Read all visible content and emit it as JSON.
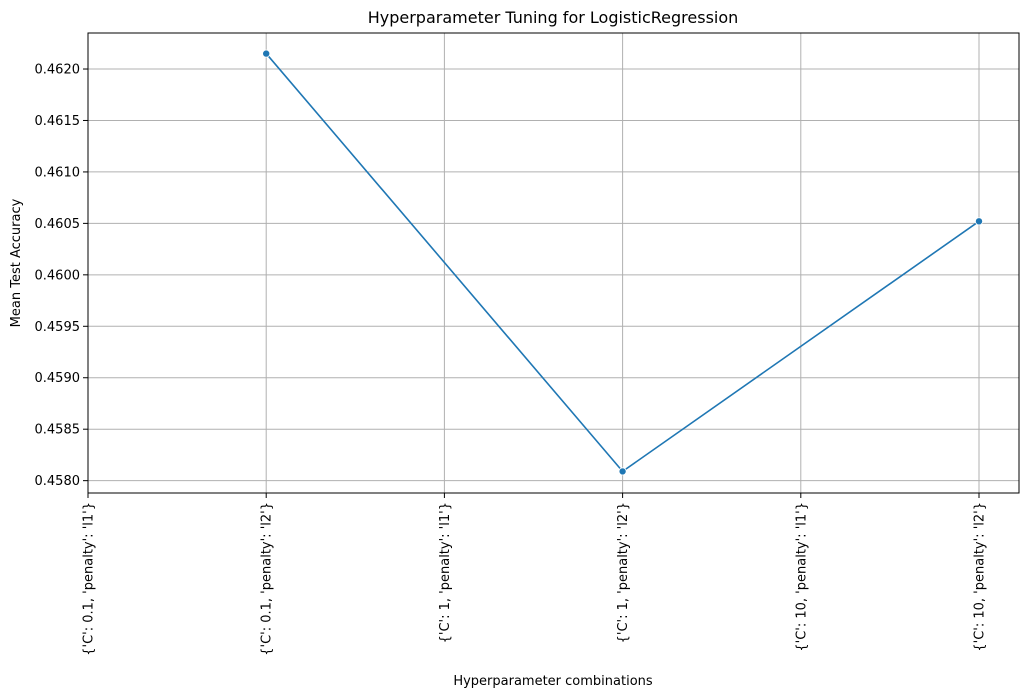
{
  "chart_data": {
    "type": "line",
    "title": "Hyperparameter Tuning for LogisticRegression",
    "xlabel": "Hyperparameter combinations",
    "ylabel": "Mean Test Accuracy",
    "categories": [
      "{'C': 0.1, 'penalty': 'l1'}",
      "{'C': 0.1, 'penalty': 'l2'}",
      "{'C': 1, 'penalty': 'l1'}",
      "{'C': 1, 'penalty': 'l2'}",
      "{'C': 10, 'penalty': 'l1'}",
      "{'C': 10, 'penalty': 'l2'}"
    ],
    "series": [
      {
        "values": [
          null,
          0.46215,
          null,
          0.45809,
          null,
          0.46052
        ],
        "color": "#1f77b4"
      }
    ],
    "ylim": [
      0.45788,
      0.46235
    ],
    "yticks": [
      "0.4580",
      "0.4585",
      "0.4590",
      "0.4595",
      "0.4600",
      "0.4605",
      "0.4610",
      "0.4615",
      "0.4620"
    ],
    "grid": true,
    "marker": "circle"
  }
}
